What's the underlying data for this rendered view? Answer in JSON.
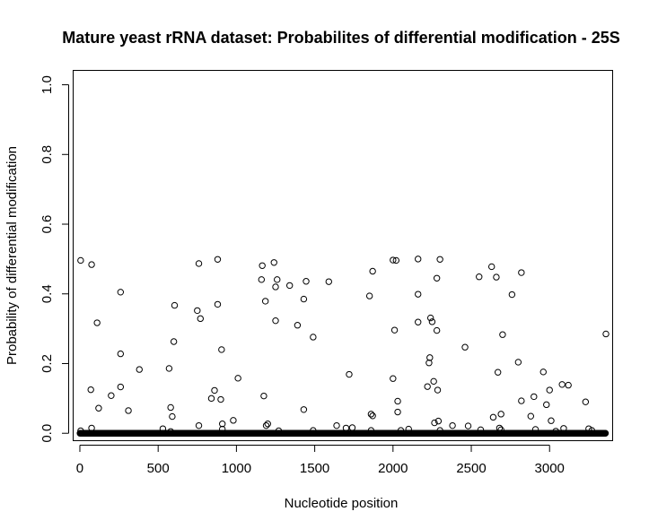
{
  "chart_data": {
    "type": "scatter",
    "title": "Mature yeast rRNA dataset: Probabilites of differential modification - 25S",
    "xlabel": "Nucleotide position",
    "ylabel": "Probability of differential modification",
    "xlim": [
      -40,
      3400
    ],
    "ylim": [
      -0.02,
      1.04
    ],
    "x_ticks": [
      0,
      500,
      1000,
      1500,
      2000,
      2500,
      3000
    ],
    "x_tick_labels": [
      "0",
      "500",
      "1000",
      "1500",
      "2000",
      "2500",
      "3000"
    ],
    "y_ticks": [
      0.0,
      0.2,
      0.4,
      0.6,
      0.8,
      1.0
    ],
    "y_tick_labels": [
      "0.0",
      "0.2",
      "0.4",
      "0.6",
      "0.8",
      "1.0"
    ],
    "baseline": {
      "x_start": 1,
      "x_end": 3360,
      "y": 0.0
    },
    "points": [
      [
        5,
        0.496
      ],
      [
        75,
        0.484
      ],
      [
        110,
        0.317
      ],
      [
        70,
        0.125
      ],
      [
        75,
        0.015
      ],
      [
        120,
        0.072
      ],
      [
        200,
        0.108
      ],
      [
        5,
        0.007
      ],
      [
        260,
        0.405
      ],
      [
        260,
        0.228
      ],
      [
        260,
        0.133
      ],
      [
        310,
        0.065
      ],
      [
        380,
        0.183
      ],
      [
        530,
        0.013
      ],
      [
        570,
        0.186
      ],
      [
        580,
        0.074
      ],
      [
        590,
        0.048
      ],
      [
        580,
        0.005
      ],
      [
        600,
        0.263
      ],
      [
        605,
        0.367
      ],
      [
        750,
        0.352
      ],
      [
        760,
        0.487
      ],
      [
        770,
        0.329
      ],
      [
        760,
        0.022
      ],
      [
        840,
        0.1
      ],
      [
        860,
        0.123
      ],
      [
        880,
        0.499
      ],
      [
        880,
        0.37
      ],
      [
        900,
        0.097
      ],
      [
        905,
        0.24
      ],
      [
        910,
        0.027
      ],
      [
        910,
        0.012
      ],
      [
        980,
        0.037
      ],
      [
        1010,
        0.158
      ],
      [
        1160,
        0.441
      ],
      [
        1165,
        0.481
      ],
      [
        1175,
        0.107
      ],
      [
        1185,
        0.379
      ],
      [
        1190,
        0.022
      ],
      [
        1200,
        0.027
      ],
      [
        1240,
        0.49
      ],
      [
        1250,
        0.42
      ],
      [
        1260,
        0.441
      ],
      [
        1250,
        0.323
      ],
      [
        1270,
        0.007
      ],
      [
        1340,
        0.424
      ],
      [
        1390,
        0.31
      ],
      [
        1430,
        0.385
      ],
      [
        1445,
        0.436
      ],
      [
        1430,
        0.068
      ],
      [
        1490,
        0.276
      ],
      [
        1490,
        0.008
      ],
      [
        1590,
        0.435
      ],
      [
        1640,
        0.022
      ],
      [
        1700,
        0.015
      ],
      [
        1720,
        0.169
      ],
      [
        1740,
        0.016
      ],
      [
        1850,
        0.394
      ],
      [
        1870,
        0.465
      ],
      [
        1860,
        0.055
      ],
      [
        1870,
        0.05
      ],
      [
        1860,
        0.008
      ],
      [
        2000,
        0.497
      ],
      [
        2000,
        0.157
      ],
      [
        2010,
        0.296
      ],
      [
        2020,
        0.496
      ],
      [
        2030,
        0.092
      ],
      [
        2030,
        0.061
      ],
      [
        2050,
        0.008
      ],
      [
        2100,
        0.012
      ],
      [
        2160,
        0.5
      ],
      [
        2160,
        0.399
      ],
      [
        2160,
        0.319
      ],
      [
        2220,
        0.134
      ],
      [
        2230,
        0.202
      ],
      [
        2235,
        0.217
      ],
      [
        2240,
        0.331
      ],
      [
        2250,
        0.32
      ],
      [
        2260,
        0.149
      ],
      [
        2265,
        0.03
      ],
      [
        2280,
        0.445
      ],
      [
        2280,
        0.295
      ],
      [
        2285,
        0.124
      ],
      [
        2300,
        0.499
      ],
      [
        2290,
        0.035
      ],
      [
        2300,
        0.008
      ],
      [
        2380,
        0.022
      ],
      [
        2460,
        0.247
      ],
      [
        2480,
        0.021
      ],
      [
        2550,
        0.449
      ],
      [
        2560,
        0.01
      ],
      [
        2630,
        0.478
      ],
      [
        2640,
        0.046
      ],
      [
        2660,
        0.448
      ],
      [
        2670,
        0.175
      ],
      [
        2680,
        0.015
      ],
      [
        2690,
        0.055
      ],
      [
        2700,
        0.283
      ],
      [
        2690,
        0.01
      ],
      [
        2760,
        0.398
      ],
      [
        2800,
        0.204
      ],
      [
        2820,
        0.461
      ],
      [
        2820,
        0.093
      ],
      [
        2880,
        0.049
      ],
      [
        2900,
        0.105
      ],
      [
        2910,
        0.011
      ],
      [
        2960,
        0.176
      ],
      [
        2980,
        0.082
      ],
      [
        3000,
        0.124
      ],
      [
        3010,
        0.036
      ],
      [
        3040,
        0.006
      ],
      [
        3080,
        0.14
      ],
      [
        3090,
        0.014
      ],
      [
        3120,
        0.138
      ],
      [
        3230,
        0.09
      ],
      [
        3250,
        0.013
      ],
      [
        3270,
        0.008
      ],
      [
        3360,
        0.285
      ]
    ]
  }
}
